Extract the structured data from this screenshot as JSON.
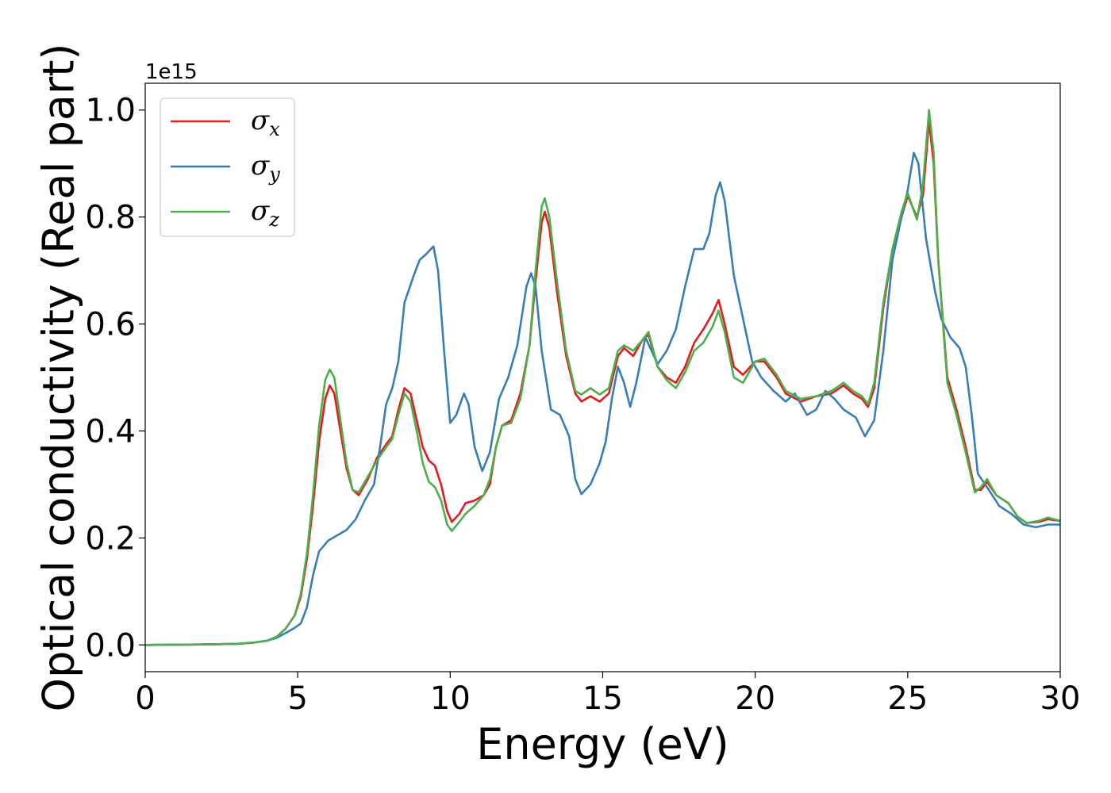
{
  "chart_data": {
    "type": "line",
    "xlabel": "Energy (eV)",
    "ylabel": "Optical conductivity (Real part)",
    "y_offset_label": "1e15",
    "xlim": [
      0,
      30
    ],
    "ylim": [
      -0.05,
      1.05
    ],
    "x_ticks": [
      0,
      5,
      10,
      15,
      20,
      25,
      30
    ],
    "x_tick_labels": [
      "0",
      "5",
      "10",
      "15",
      "20",
      "25",
      "30"
    ],
    "y_ticks": [
      0.0,
      0.2,
      0.4,
      0.6,
      0.8,
      1.0
    ],
    "y_tick_labels": [
      "0.0",
      "0.2",
      "0.4",
      "0.6",
      "0.8",
      "1.0"
    ],
    "grid": false,
    "legend_position": "top-left",
    "series": [
      {
        "name": "σx",
        "symbol": "σ",
        "subscript": "x",
        "color": "#e41a1c",
        "points": [
          [
            0,
            0
          ],
          [
            2,
            0.001
          ],
          [
            3,
            0.002
          ],
          [
            3.5,
            0.004
          ],
          [
            4,
            0.008
          ],
          [
            4.3,
            0.015
          ],
          [
            4.6,
            0.03
          ],
          [
            4.9,
            0.055
          ],
          [
            5.1,
            0.09
          ],
          [
            5.3,
            0.16
          ],
          [
            5.5,
            0.26
          ],
          [
            5.7,
            0.38
          ],
          [
            5.9,
            0.46
          ],
          [
            6.05,
            0.485
          ],
          [
            6.2,
            0.47
          ],
          [
            6.4,
            0.4
          ],
          [
            6.6,
            0.33
          ],
          [
            6.8,
            0.29
          ],
          [
            7.0,
            0.28
          ],
          [
            7.3,
            0.31
          ],
          [
            7.6,
            0.35
          ],
          [
            7.9,
            0.375
          ],
          [
            8.1,
            0.39
          ],
          [
            8.3,
            0.44
          ],
          [
            8.5,
            0.48
          ],
          [
            8.7,
            0.47
          ],
          [
            8.9,
            0.42
          ],
          [
            9.1,
            0.37
          ],
          [
            9.3,
            0.345
          ],
          [
            9.5,
            0.335
          ],
          [
            9.7,
            0.3
          ],
          [
            9.9,
            0.25
          ],
          [
            10.05,
            0.23
          ],
          [
            10.3,
            0.245
          ],
          [
            10.5,
            0.265
          ],
          [
            10.8,
            0.27
          ],
          [
            11.1,
            0.28
          ],
          [
            11.3,
            0.3
          ],
          [
            11.5,
            0.37
          ],
          [
            11.7,
            0.41
          ],
          [
            12.0,
            0.42
          ],
          [
            12.3,
            0.47
          ],
          [
            12.6,
            0.56
          ],
          [
            12.8,
            0.68
          ],
          [
            13.0,
            0.79
          ],
          [
            13.1,
            0.81
          ],
          [
            13.25,
            0.78
          ],
          [
            13.5,
            0.66
          ],
          [
            13.8,
            0.54
          ],
          [
            14.1,
            0.47
          ],
          [
            14.3,
            0.455
          ],
          [
            14.6,
            0.465
          ],
          [
            14.9,
            0.455
          ],
          [
            15.2,
            0.47
          ],
          [
            15.5,
            0.54
          ],
          [
            15.7,
            0.555
          ],
          [
            16.0,
            0.54
          ],
          [
            16.3,
            0.57
          ],
          [
            16.5,
            0.58
          ],
          [
            16.8,
            0.52
          ],
          [
            17.1,
            0.5
          ],
          [
            17.4,
            0.49
          ],
          [
            17.7,
            0.52
          ],
          [
            18.0,
            0.565
          ],
          [
            18.3,
            0.59
          ],
          [
            18.6,
            0.62
          ],
          [
            18.8,
            0.645
          ],
          [
            19.0,
            0.6
          ],
          [
            19.3,
            0.52
          ],
          [
            19.6,
            0.505
          ],
          [
            20.0,
            0.53
          ],
          [
            20.3,
            0.53
          ],
          [
            20.7,
            0.5
          ],
          [
            21.0,
            0.47
          ],
          [
            21.5,
            0.455
          ],
          [
            22.0,
            0.465
          ],
          [
            22.5,
            0.47
          ],
          [
            22.9,
            0.485
          ],
          [
            23.2,
            0.47
          ],
          [
            23.5,
            0.46
          ],
          [
            23.7,
            0.445
          ],
          [
            23.9,
            0.48
          ],
          [
            24.2,
            0.63
          ],
          [
            24.5,
            0.74
          ],
          [
            24.8,
            0.8
          ],
          [
            25.0,
            0.84
          ],
          [
            25.3,
            0.8
          ],
          [
            25.5,
            0.84
          ],
          [
            25.7,
            0.98
          ],
          [
            25.85,
            0.9
          ],
          [
            26.0,
            0.72
          ],
          [
            26.3,
            0.5
          ],
          [
            26.6,
            0.44
          ],
          [
            26.9,
            0.37
          ],
          [
            27.2,
            0.29
          ],
          [
            27.4,
            0.29
          ],
          [
            27.6,
            0.305
          ],
          [
            27.9,
            0.28
          ],
          [
            28.3,
            0.265
          ],
          [
            28.6,
            0.24
          ],
          [
            28.9,
            0.228
          ],
          [
            29.3,
            0.23
          ],
          [
            29.6,
            0.235
          ],
          [
            30.0,
            0.232
          ]
        ]
      },
      {
        "name": "σy",
        "symbol": "σ",
        "subscript": "y",
        "color": "#377eb8",
        "points": [
          [
            0,
            0
          ],
          [
            2,
            0.001
          ],
          [
            3,
            0.002
          ],
          [
            3.5,
            0.004
          ],
          [
            4,
            0.008
          ],
          [
            4.3,
            0.013
          ],
          [
            4.6,
            0.022
          ],
          [
            4.9,
            0.032
          ],
          [
            5.1,
            0.04
          ],
          [
            5.3,
            0.07
          ],
          [
            5.5,
            0.13
          ],
          [
            5.7,
            0.175
          ],
          [
            6.0,
            0.195
          ],
          [
            6.3,
            0.205
          ],
          [
            6.6,
            0.215
          ],
          [
            6.9,
            0.235
          ],
          [
            7.2,
            0.27
          ],
          [
            7.5,
            0.3
          ],
          [
            7.7,
            0.37
          ],
          [
            7.9,
            0.45
          ],
          [
            8.1,
            0.48
          ],
          [
            8.3,
            0.53
          ],
          [
            8.5,
            0.64
          ],
          [
            8.8,
            0.69
          ],
          [
            9.0,
            0.72
          ],
          [
            9.2,
            0.73
          ],
          [
            9.45,
            0.745
          ],
          [
            9.6,
            0.7
          ],
          [
            9.8,
            0.55
          ],
          [
            10.0,
            0.415
          ],
          [
            10.2,
            0.43
          ],
          [
            10.45,
            0.47
          ],
          [
            10.6,
            0.45
          ],
          [
            10.8,
            0.37
          ],
          [
            11.05,
            0.325
          ],
          [
            11.3,
            0.36
          ],
          [
            11.6,
            0.46
          ],
          [
            11.9,
            0.5
          ],
          [
            12.2,
            0.56
          ],
          [
            12.5,
            0.67
          ],
          [
            12.65,
            0.695
          ],
          [
            12.8,
            0.67
          ],
          [
            13.0,
            0.55
          ],
          [
            13.3,
            0.44
          ],
          [
            13.6,
            0.43
          ],
          [
            13.9,
            0.39
          ],
          [
            14.1,
            0.31
          ],
          [
            14.3,
            0.282
          ],
          [
            14.6,
            0.3
          ],
          [
            14.9,
            0.34
          ],
          [
            15.1,
            0.38
          ],
          [
            15.3,
            0.46
          ],
          [
            15.5,
            0.52
          ],
          [
            15.7,
            0.49
          ],
          [
            15.9,
            0.445
          ],
          [
            16.1,
            0.49
          ],
          [
            16.4,
            0.575
          ],
          [
            16.6,
            0.55
          ],
          [
            16.8,
            0.525
          ],
          [
            17.1,
            0.55
          ],
          [
            17.4,
            0.59
          ],
          [
            17.7,
            0.67
          ],
          [
            18.0,
            0.74
          ],
          [
            18.3,
            0.74
          ],
          [
            18.5,
            0.77
          ],
          [
            18.7,
            0.84
          ],
          [
            18.85,
            0.865
          ],
          [
            19.0,
            0.83
          ],
          [
            19.3,
            0.69
          ],
          [
            19.6,
            0.61
          ],
          [
            19.9,
            0.53
          ],
          [
            20.2,
            0.5
          ],
          [
            20.6,
            0.475
          ],
          [
            21.0,
            0.455
          ],
          [
            21.3,
            0.47
          ],
          [
            21.7,
            0.43
          ],
          [
            22.0,
            0.44
          ],
          [
            22.3,
            0.475
          ],
          [
            22.6,
            0.46
          ],
          [
            22.9,
            0.44
          ],
          [
            23.3,
            0.425
          ],
          [
            23.6,
            0.39
          ],
          [
            23.9,
            0.42
          ],
          [
            24.2,
            0.55
          ],
          [
            24.5,
            0.72
          ],
          [
            24.8,
            0.8
          ],
          [
            25.0,
            0.85
          ],
          [
            25.2,
            0.92
          ],
          [
            25.35,
            0.9
          ],
          [
            25.6,
            0.76
          ],
          [
            25.9,
            0.66
          ],
          [
            26.1,
            0.61
          ],
          [
            26.4,
            0.575
          ],
          [
            26.7,
            0.555
          ],
          [
            26.9,
            0.52
          ],
          [
            27.1,
            0.43
          ],
          [
            27.3,
            0.32
          ],
          [
            27.6,
            0.295
          ],
          [
            28.0,
            0.26
          ],
          [
            28.4,
            0.245
          ],
          [
            28.8,
            0.225
          ],
          [
            29.2,
            0.22
          ],
          [
            29.6,
            0.225
          ],
          [
            30.0,
            0.225
          ]
        ]
      },
      {
        "name": "σz",
        "symbol": "σ",
        "subscript": "z",
        "color": "#4daf4a",
        "points": [
          [
            0,
            0
          ],
          [
            2,
            0.001
          ],
          [
            3,
            0.002
          ],
          [
            3.5,
            0.004
          ],
          [
            4,
            0.008
          ],
          [
            4.3,
            0.015
          ],
          [
            4.6,
            0.03
          ],
          [
            4.9,
            0.055
          ],
          [
            5.1,
            0.095
          ],
          [
            5.3,
            0.17
          ],
          [
            5.5,
            0.28
          ],
          [
            5.7,
            0.41
          ],
          [
            5.9,
            0.495
          ],
          [
            6.05,
            0.515
          ],
          [
            6.2,
            0.5
          ],
          [
            6.4,
            0.42
          ],
          [
            6.6,
            0.34
          ],
          [
            6.8,
            0.29
          ],
          [
            7.0,
            0.285
          ],
          [
            7.3,
            0.315
          ],
          [
            7.6,
            0.345
          ],
          [
            7.9,
            0.37
          ],
          [
            8.1,
            0.385
          ],
          [
            8.3,
            0.43
          ],
          [
            8.5,
            0.47
          ],
          [
            8.7,
            0.455
          ],
          [
            8.9,
            0.4
          ],
          [
            9.1,
            0.34
          ],
          [
            9.3,
            0.305
          ],
          [
            9.5,
            0.295
          ],
          [
            9.7,
            0.27
          ],
          [
            9.9,
            0.225
          ],
          [
            10.05,
            0.213
          ],
          [
            10.3,
            0.23
          ],
          [
            10.5,
            0.245
          ],
          [
            10.8,
            0.26
          ],
          [
            11.1,
            0.28
          ],
          [
            11.3,
            0.31
          ],
          [
            11.5,
            0.37
          ],
          [
            11.7,
            0.41
          ],
          [
            12.0,
            0.415
          ],
          [
            12.3,
            0.46
          ],
          [
            12.6,
            0.56
          ],
          [
            12.8,
            0.7
          ],
          [
            13.0,
            0.82
          ],
          [
            13.1,
            0.835
          ],
          [
            13.25,
            0.8
          ],
          [
            13.5,
            0.68
          ],
          [
            13.8,
            0.55
          ],
          [
            14.1,
            0.475
          ],
          [
            14.3,
            0.468
          ],
          [
            14.6,
            0.48
          ],
          [
            14.9,
            0.468
          ],
          [
            15.2,
            0.48
          ],
          [
            15.5,
            0.55
          ],
          [
            15.7,
            0.56
          ],
          [
            16.0,
            0.55
          ],
          [
            16.3,
            0.57
          ],
          [
            16.5,
            0.585
          ],
          [
            16.8,
            0.52
          ],
          [
            17.1,
            0.495
          ],
          [
            17.4,
            0.48
          ],
          [
            17.7,
            0.51
          ],
          [
            18.0,
            0.55
          ],
          [
            18.3,
            0.565
          ],
          [
            18.6,
            0.595
          ],
          [
            18.8,
            0.625
          ],
          [
            19.0,
            0.585
          ],
          [
            19.3,
            0.5
          ],
          [
            19.6,
            0.49
          ],
          [
            20.0,
            0.53
          ],
          [
            20.3,
            0.535
          ],
          [
            20.7,
            0.505
          ],
          [
            21.0,
            0.475
          ],
          [
            21.5,
            0.46
          ],
          [
            22.0,
            0.465
          ],
          [
            22.5,
            0.475
          ],
          [
            22.9,
            0.49
          ],
          [
            23.2,
            0.475
          ],
          [
            23.5,
            0.465
          ],
          [
            23.7,
            0.45
          ],
          [
            23.9,
            0.49
          ],
          [
            24.2,
            0.64
          ],
          [
            24.5,
            0.74
          ],
          [
            24.8,
            0.81
          ],
          [
            25.0,
            0.845
          ],
          [
            25.3,
            0.795
          ],
          [
            25.5,
            0.86
          ],
          [
            25.7,
            1.0
          ],
          [
            25.85,
            0.92
          ],
          [
            26.0,
            0.72
          ],
          [
            26.3,
            0.49
          ],
          [
            26.6,
            0.43
          ],
          [
            26.9,
            0.36
          ],
          [
            27.2,
            0.285
          ],
          [
            27.4,
            0.295
          ],
          [
            27.6,
            0.31
          ],
          [
            27.9,
            0.28
          ],
          [
            28.3,
            0.265
          ],
          [
            28.6,
            0.24
          ],
          [
            28.9,
            0.228
          ],
          [
            29.3,
            0.232
          ],
          [
            29.6,
            0.238
          ],
          [
            30.0,
            0.232
          ]
        ]
      }
    ]
  }
}
